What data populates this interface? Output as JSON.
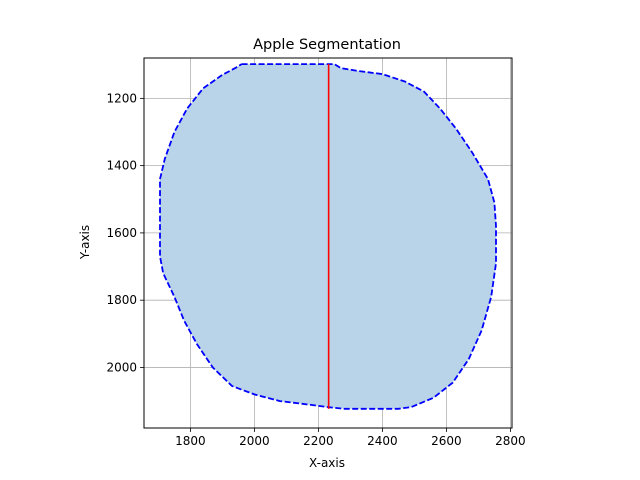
{
  "chart_data": {
    "type": "area",
    "title": "Apple Segmentation",
    "xlabel": "X-axis",
    "ylabel": "Y-axis",
    "xlim": [
      1655,
      2805
    ],
    "ylim": [
      1080,
      2180
    ],
    "y_inverted": true,
    "grid": true,
    "x_ticks": [
      1800,
      2000,
      2200,
      2400,
      2600,
      2800
    ],
    "y_ticks": [
      1200,
      1400,
      1600,
      1800,
      2000
    ],
    "colors": {
      "fill": "#b9d4e9",
      "outline": "#0000ff",
      "line": "#ff0000",
      "grid": "#b0b0b0"
    },
    "series": [
      {
        "kind": "polygon",
        "points": [
          [
            1960,
            1098
          ],
          [
            2000,
            1098
          ],
          [
            2100,
            1098
          ],
          [
            2200,
            1098
          ],
          [
            2250,
            1098
          ],
          [
            2270,
            1110
          ],
          [
            2320,
            1118
          ],
          [
            2400,
            1128
          ],
          [
            2470,
            1150
          ],
          [
            2530,
            1180
          ],
          [
            2580,
            1230
          ],
          [
            2630,
            1290
          ],
          [
            2680,
            1360
          ],
          [
            2730,
            1440
          ],
          [
            2750,
            1510
          ],
          [
            2755,
            1580
          ],
          [
            2755,
            1690
          ],
          [
            2740,
            1790
          ],
          [
            2710,
            1890
          ],
          [
            2670,
            1975
          ],
          [
            2620,
            2045
          ],
          [
            2560,
            2090
          ],
          [
            2490,
            2118
          ],
          [
            2450,
            2123
          ],
          [
            2350,
            2123
          ],
          [
            2280,
            2123
          ],
          [
            2230,
            2118
          ],
          [
            2150,
            2108
          ],
          [
            2080,
            2100
          ],
          [
            2000,
            2080
          ],
          [
            1930,
            2055
          ],
          [
            1870,
            2000
          ],
          [
            1820,
            1930
          ],
          [
            1780,
            1860
          ],
          [
            1750,
            1790
          ],
          [
            1715,
            1720
          ],
          [
            1705,
            1670
          ],
          [
            1705,
            1440
          ],
          [
            1720,
            1380
          ],
          [
            1750,
            1300
          ],
          [
            1790,
            1230
          ],
          [
            1840,
            1170
          ],
          [
            1900,
            1130
          ],
          [
            1940,
            1110
          ],
          [
            1960,
            1098
          ]
        ]
      },
      {
        "kind": "line",
        "x": [
          2232,
          2232
        ],
        "y": [
          1098,
          2123
        ]
      }
    ]
  }
}
